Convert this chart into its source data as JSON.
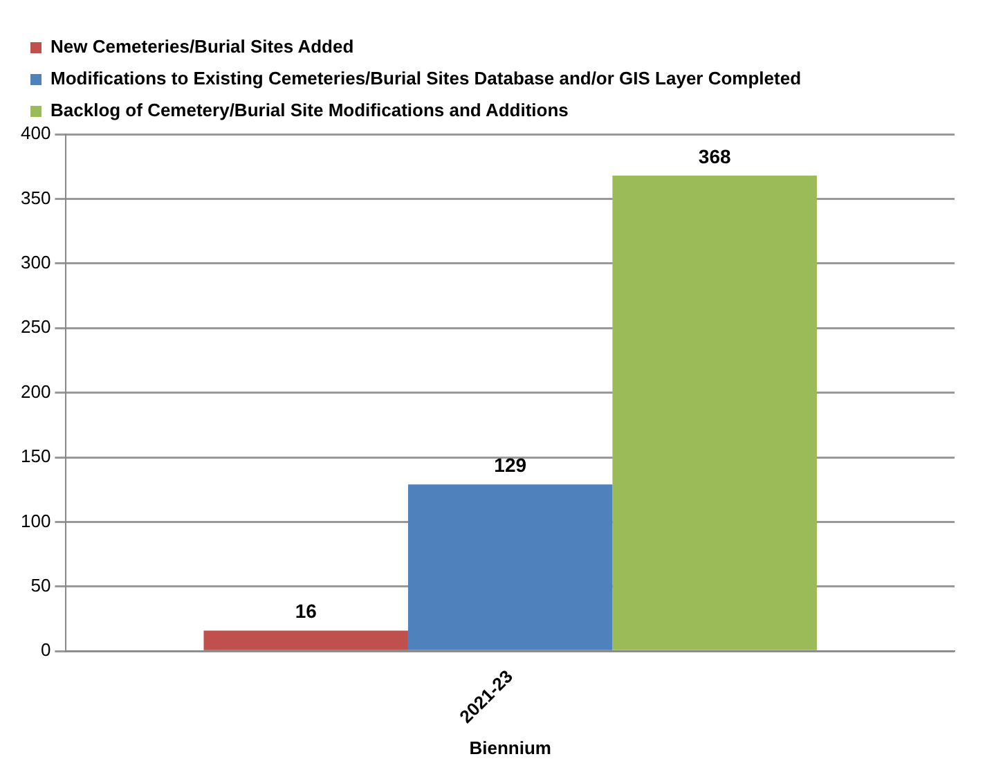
{
  "chart_data": {
    "type": "bar",
    "xlabel": "Biennium",
    "categories": [
      "2021-23"
    ],
    "series": [
      {
        "name": "New Cemeteries/Burial Sites Added",
        "color": "#c0504d",
        "values": [
          16
        ]
      },
      {
        "name": "Modifications to Existing Cemeteries/Burial Sites Database and/or GIS Layer Completed",
        "color": "#4f81bd",
        "values": [
          129
        ]
      },
      {
        "name": "Backlog of Cemetery/Burial Site Modifications and Additions",
        "color": "#9bbb59",
        "values": [
          368
        ]
      }
    ],
    "ylim": [
      0,
      400
    ],
    "yticks": [
      0,
      50,
      100,
      150,
      200,
      250,
      300,
      350,
      400
    ],
    "grid": "y",
    "legend": "top",
    "data_labels": true
  }
}
